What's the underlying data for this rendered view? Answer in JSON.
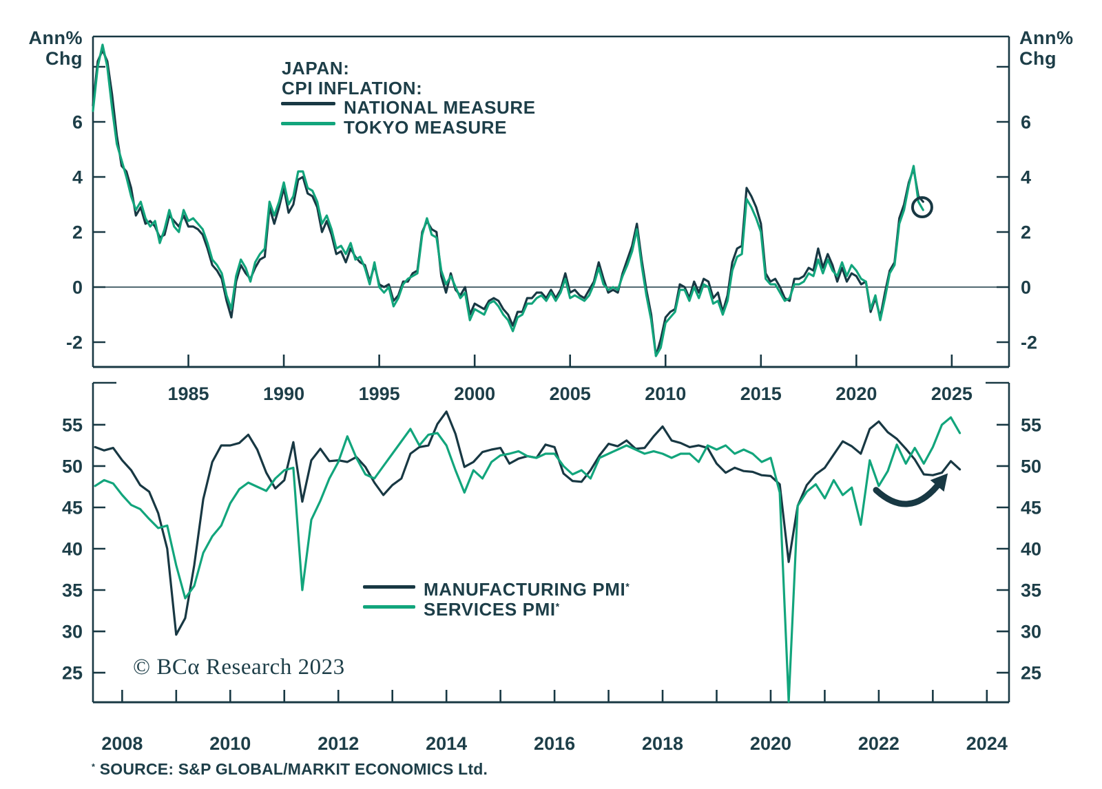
{
  "colors": {
    "dark": "#183843",
    "green": "#12a57c",
    "text": "#1d3e48"
  },
  "unit_labels": {
    "left1": "Ann%",
    "left2": "Chg",
    "right1": "Ann%",
    "right2": "Chg"
  },
  "title": {
    "line1": "JAPAN:",
    "line2": "CPI INFLATION:"
  },
  "legend_top": {
    "items": [
      {
        "label": "NATIONAL MEASURE",
        "color": "dark"
      },
      {
        "label": "TOKYO MEASURE",
        "color": "green"
      }
    ]
  },
  "legend_bottom": {
    "items": [
      {
        "label": "MANUFACTURING PMI",
        "sup": "*",
        "color": "dark"
      },
      {
        "label": "SERVICES PMI",
        "sup": "*",
        "color": "green"
      }
    ]
  },
  "footer": {
    "copyright": "© BCα Research 2023",
    "source_star": "*",
    "source_text": " SOURCE: S&P GLOBAL/MARKIT ECONOMICS Ltd."
  },
  "chart_data": [
    {
      "type": "line",
      "title": "JAPAN: CPI INFLATION",
      "ylabel": "Ann% Chg",
      "xlabel": "",
      "grid": false,
      "legend_position": "top-left-inside",
      "xlim": [
        1980,
        2028.0
      ],
      "ylim": [
        -2.9,
        9.1
      ],
      "zero_line": true,
      "frame": "box",
      "x_tick_values": [
        1985,
        1990,
        1995,
        2000,
        2005,
        2010,
        2015,
        2020,
        2025
      ],
      "x_tick_labels": [
        "1985",
        "1990",
        "1995",
        "2000",
        "2005",
        "2010",
        "2015",
        "2020",
        "2025"
      ],
      "x_ticks_all": [
        1985,
        1990,
        1995,
        2000,
        2005,
        2010,
        2015,
        2020,
        2025
      ],
      "y_ticks_all": [
        8,
        6,
        4,
        2,
        0,
        -2
      ],
      "y_tick_label_values": [
        6,
        4,
        2,
        0,
        -2
      ],
      "y_tick_labels": [
        "6",
        "4",
        "2",
        "0",
        "-2"
      ],
      "annotation_circle": {
        "x": 2023.45,
        "y": 2.9,
        "r": 14
      },
      "series": [
        {
          "name": "NATIONAL MEASURE",
          "color": "dark",
          "x_start": 1980.0,
          "x_step": 0.25,
          "values": [
            6.6,
            8.2,
            8.6,
            8.2,
            7.0,
            5.5,
            4.4,
            4.2,
            3.6,
            2.6,
            2.9,
            2.3,
            2.4,
            2.2,
            1.8,
            1.9,
            2.6,
            2.4,
            2.2,
            2.6,
            2.2,
            2.2,
            2.1,
            1.9,
            1.4,
            0.8,
            0.6,
            0.3,
            -0.5,
            -1.1,
            0.2,
            0.8,
            0.5,
            0.3,
            0.7,
            1.0,
            1.1,
            2.9,
            2.3,
            2.9,
            3.6,
            2.7,
            3.0,
            3.9,
            4.0,
            3.4,
            3.3,
            2.9,
            2.0,
            2.4,
            1.9,
            1.2,
            1.3,
            0.9,
            1.4,
            1.1,
            0.9,
            0.8,
            0.2,
            0.8,
            0.1,
            0.0,
            0.1,
            -0.5,
            -0.3,
            0.2,
            0.2,
            0.5,
            0.6,
            2.0,
            2.4,
            2.1,
            2.0,
            0.4,
            -0.2,
            0.5,
            -0.1,
            -0.3,
            0.0,
            -1.0,
            -0.6,
            -0.7,
            -0.8,
            -0.5,
            -0.4,
            -0.5,
            -0.8,
            -1.0,
            -1.4,
            -0.9,
            -0.9,
            -0.4,
            -0.4,
            -0.2,
            -0.2,
            -0.4,
            -0.1,
            -0.4,
            -0.1,
            0.5,
            -0.2,
            -0.1,
            -0.3,
            -0.4,
            -0.1,
            0.2,
            0.9,
            0.3,
            -0.2,
            -0.1,
            -0.2,
            0.5,
            1.0,
            1.5,
            2.3,
            1.0,
            -0.1,
            -1.0,
            -2.5,
            -1.9,
            -1.1,
            -0.9,
            -0.8,
            0.1,
            0.0,
            -0.4,
            0.2,
            -0.2,
            0.3,
            0.2,
            -0.4,
            -0.2,
            -0.9,
            -0.3,
            0.9,
            1.4,
            1.5,
            3.6,
            3.3,
            2.9,
            2.3,
            0.5,
            0.2,
            0.3,
            0.0,
            -0.4,
            -0.5,
            0.3,
            0.3,
            0.4,
            0.7,
            0.6,
            1.4,
            0.7,
            1.2,
            0.8,
            0.2,
            0.7,
            0.2,
            0.5,
            0.4,
            0.1,
            0.2,
            -0.9,
            -0.4,
            -1.1,
            -0.2,
            0.6,
            0.9,
            2.5,
            3.0,
            3.8,
            4.3,
            3.3,
            3.1
          ]
        },
        {
          "name": "TOKYO MEASURE",
          "color": "green",
          "x_start": 1980.0,
          "x_step": 0.25,
          "values": [
            6.4,
            8.0,
            8.8,
            8.0,
            6.5,
            5.2,
            4.6,
            4.0,
            3.3,
            2.8,
            3.1,
            2.5,
            2.2,
            2.4,
            1.6,
            2.1,
            2.8,
            2.2,
            2.0,
            2.8,
            2.4,
            2.5,
            2.3,
            2.1,
            1.6,
            1.0,
            0.8,
            0.5,
            -0.3,
            -0.8,
            0.4,
            1.0,
            0.7,
            0.2,
            0.9,
            1.2,
            1.4,
            3.1,
            2.6,
            3.1,
            3.8,
            3.0,
            3.3,
            4.2,
            4.2,
            3.6,
            3.5,
            3.1,
            2.3,
            2.6,
            2.1,
            1.4,
            1.5,
            1.2,
            1.6,
            1.0,
            1.1,
            0.7,
            0.1,
            0.9,
            0.0,
            -0.2,
            0.0,
            -0.7,
            -0.4,
            0.1,
            0.3,
            0.4,
            0.5,
            1.9,
            2.5,
            1.9,
            1.8,
            0.6,
            0.1,
            0.4,
            0.0,
            -0.4,
            -0.2,
            -1.2,
            -0.8,
            -0.9,
            -1.0,
            -0.6,
            -0.5,
            -0.7,
            -1.0,
            -1.2,
            -1.6,
            -1.1,
            -1.0,
            -0.6,
            -0.6,
            -0.4,
            -0.3,
            -0.5,
            -0.2,
            -0.5,
            -0.2,
            0.3,
            -0.4,
            -0.3,
            -0.4,
            -0.5,
            -0.3,
            0.1,
            0.7,
            0.1,
            -0.1,
            0.0,
            -0.1,
            0.4,
            0.8,
            1.3,
            2.1,
            0.8,
            -0.3,
            -1.2,
            -2.5,
            -2.2,
            -1.3,
            -1.1,
            -0.9,
            -0.1,
            -0.1,
            -0.5,
            0.0,
            -0.4,
            0.1,
            0.0,
            -0.6,
            -0.5,
            -1.0,
            -0.5,
            0.6,
            1.1,
            1.2,
            3.2,
            2.9,
            2.5,
            2.0,
            0.3,
            0.1,
            0.1,
            -0.2,
            -0.5,
            -0.4,
            0.1,
            0.1,
            0.2,
            0.5,
            0.4,
            1.0,
            0.5,
            1.0,
            0.6,
            0.4,
            0.9,
            0.4,
            0.8,
            0.6,
            0.3,
            0.2,
            -0.8,
            -0.3,
            -1.2,
            -0.4,
            0.5,
            0.8,
            2.3,
            2.8,
            3.7,
            4.4,
            3.1,
            2.8
          ]
        }
      ]
    },
    {
      "type": "line",
      "title": "JAPAN: PMI",
      "ylabel": "",
      "xlabel": "",
      "grid": false,
      "legend_position": "center-inside",
      "xlim": [
        2007.46,
        2024.41
      ],
      "ylim": [
        21.42,
        60.08
      ],
      "zero_line": false,
      "frame": "open-top",
      "x_tick_values": [
        2008,
        2010,
        2012,
        2014,
        2016,
        2018,
        2020,
        2022,
        2024
      ],
      "x_tick_labels": [
        "2008",
        "2010",
        "2012",
        "2014",
        "2016",
        "2018",
        "2020",
        "2022",
        "2024"
      ],
      "x_ticks_all": [
        2008,
        2009,
        2010,
        2011,
        2012,
        2013,
        2014,
        2015,
        2016,
        2017,
        2018,
        2019,
        2020,
        2021,
        2022,
        2023,
        2024
      ],
      "y_ticks_all": [
        55,
        50,
        45,
        40,
        35,
        30,
        25
      ],
      "y_tick_label_values": [
        55,
        50,
        45,
        40,
        35,
        30,
        25
      ],
      "y_tick_labels": [
        "55",
        "50",
        "45",
        "40",
        "35",
        "30",
        "25"
      ],
      "annotation_arrow": {
        "from": {
          "x": 2021.95,
          "y": 47.1
        },
        "ctrl": {
          "x": 2022.55,
          "y": 43.5
        },
        "to": {
          "x": 2023.08,
          "y": 47.6
        }
      },
      "series": [
        {
          "name": "MANUFACTURING PMI*",
          "color": "dark",
          "x_start": 2007.5,
          "x_step": 0.16667,
          "values": [
            52.3,
            51.9,
            52.2,
            50.7,
            49.5,
            47.7,
            46.9,
            44.3,
            40.0,
            29.6,
            31.6,
            38.0,
            46.0,
            50.5,
            52.5,
            52.5,
            52.8,
            53.8,
            52.0,
            49.2,
            47.3,
            48.3,
            52.9,
            45.7,
            50.7,
            52.1,
            50.6,
            50.7,
            50.5,
            51.1,
            49.9,
            48.0,
            46.5,
            47.7,
            48.5,
            51.5,
            52.3,
            52.5,
            55.1,
            56.6,
            53.9,
            49.9,
            50.5,
            51.7,
            52.0,
            52.2,
            50.3,
            50.9,
            51.2,
            51.0,
            52.6,
            52.3,
            49.1,
            48.2,
            48.1,
            49.5,
            51.3,
            52.7,
            52.4,
            53.1,
            52.1,
            52.2,
            53.6,
            54.8,
            53.1,
            52.8,
            52.3,
            52.5,
            52.2,
            50.3,
            49.2,
            49.8,
            49.4,
            49.3,
            48.9,
            48.8,
            47.8,
            38.4,
            45.2,
            47.7,
            49.0,
            49.8,
            51.4,
            53.0,
            52.4,
            51.5,
            54.5,
            55.4,
            54.1,
            53.3,
            52.1,
            50.8,
            49.0,
            48.9,
            49.2,
            50.6,
            49.6
          ]
        },
        {
          "name": "SERVICES PMI*",
          "color": "green",
          "x_start": 2007.5,
          "x_step": 0.16667,
          "values": [
            47.6,
            48.3,
            47.9,
            46.5,
            45.3,
            44.8,
            43.6,
            42.5,
            42.8,
            38.0,
            34.0,
            35.5,
            39.5,
            41.5,
            42.8,
            45.5,
            47.2,
            48.0,
            47.5,
            47.0,
            48.5,
            49.5,
            49.8,
            35.0,
            43.5,
            45.8,
            48.5,
            50.5,
            53.6,
            51.0,
            49.0,
            48.5,
            50.0,
            51.5,
            53.0,
            54.5,
            52.5,
            53.8,
            54.0,
            52.5,
            49.5,
            46.8,
            49.5,
            48.5,
            50.5,
            51.3,
            51.5,
            51.8,
            51.2,
            51.0,
            51.5,
            51.5,
            50.0,
            49.0,
            49.5,
            48.5,
            51.0,
            51.5,
            52.0,
            52.5,
            52.0,
            51.5,
            51.8,
            51.5,
            51.0,
            51.5,
            51.5,
            50.5,
            52.5,
            52.0,
            52.5,
            51.5,
            52.0,
            51.5,
            50.5,
            51.0,
            46.8,
            21.5,
            45.2,
            46.9,
            47.8,
            46.1,
            48.3,
            46.5,
            47.4,
            42.9,
            50.7,
            47.6,
            49.4,
            52.6,
            50.3,
            52.2,
            50.3,
            52.3,
            55.0,
            55.9,
            54.0
          ]
        }
      ]
    }
  ]
}
